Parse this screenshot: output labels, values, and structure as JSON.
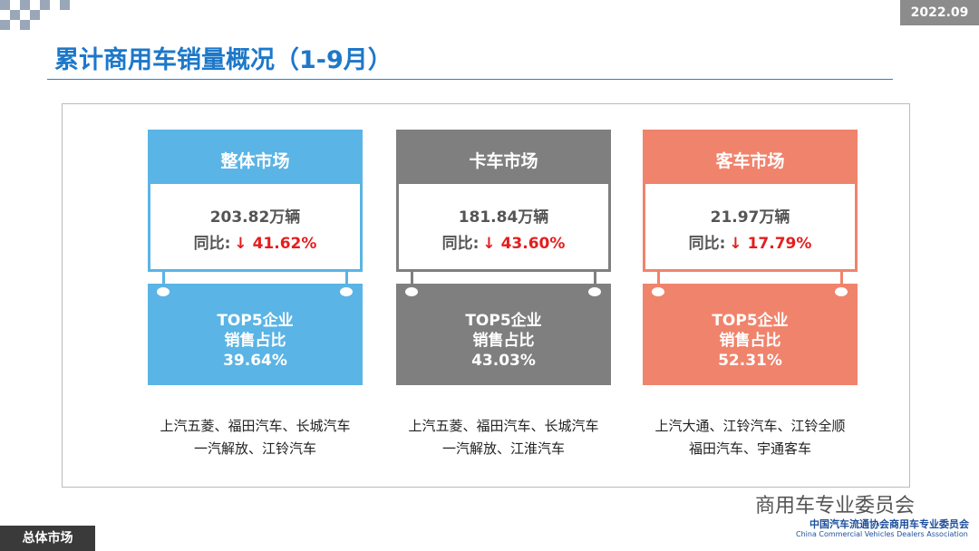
{
  "header": {
    "date": "2022.09",
    "title": "累计商用车销量概况（1-9月）"
  },
  "cards": [
    {
      "title": "整体市场",
      "volume": "203.82万辆",
      "yoy_label": "同比:",
      "yoy": "↓ 41.62%",
      "top5_line1": "TOP5企业",
      "top5_line2": "销售占比",
      "top5_share": "39.64%",
      "companies": [
        "上汽五菱、福田汽车、长城汽车",
        "一汽解放、江铃汽车"
      ]
    },
    {
      "title": "卡车市场",
      "volume": "181.84万辆",
      "yoy_label": "同比:",
      "yoy": "↓ 43.60%",
      "top5_line1": "TOP5企业",
      "top5_line2": "销售占比",
      "top5_share": "43.03%",
      "companies": [
        "上汽五菱、福田汽车、长城汽车",
        "一汽解放、江淮汽车"
      ]
    },
    {
      "title": "客车市场",
      "volume": "21.97万辆",
      "yoy_label": "同比:",
      "yoy": "↓ 17.79%",
      "top5_line1": "TOP5企业",
      "top5_line2": "销售占比",
      "top5_share": "52.31%",
      "companies": [
        "上汽大通、江铃汽车、江铃全顺",
        "福田汽车、宇通客车"
      ]
    }
  ],
  "footer": {
    "section": "总体市场",
    "watermark": "商用车专业委员会",
    "org_cn": "中国汽车流通协会商用车专业委员会",
    "org_en": "China Commercial Vehicles Dealers Association"
  }
}
